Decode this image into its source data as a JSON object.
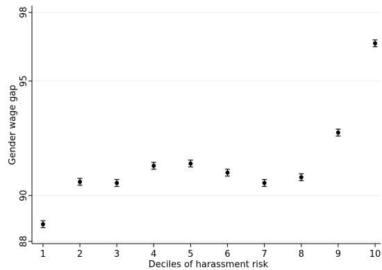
{
  "chart_data": {
    "type": "scatter",
    "title": "",
    "xlabel": "Deciles of harassment risk",
    "ylabel": "Gender wage gap",
    "xlim": [
      0.7,
      10.15
    ],
    "ylim": [
      87.9,
      98.3
    ],
    "grid": "horizontal",
    "error_bars": true,
    "x_ticks": [
      1,
      2,
      3,
      4,
      5,
      6,
      7,
      8,
      9,
      10
    ],
    "x_tick_labels": [
      "1",
      "2",
      "3",
      "4",
      "5",
      "6",
      "7",
      "8",
      "9",
      "10"
    ],
    "y_ticks": [
      88,
      90,
      95,
      98
    ],
    "y_tick_labels": [
      "88",
      "90",
      "95",
      "98"
    ],
    "series": [
      {
        "x": [
          1,
          2,
          3,
          4,
          5,
          6,
          7,
          8,
          9,
          10
        ],
        "y": [
          88.75,
          90.6,
          90.55,
          91.3,
          91.4,
          91.0,
          90.55,
          90.8,
          92.75,
          96.65
        ],
        "err": [
          0.15,
          0.15,
          0.15,
          0.15,
          0.15,
          0.15,
          0.15,
          0.15,
          0.15,
          0.15
        ]
      }
    ]
  }
}
